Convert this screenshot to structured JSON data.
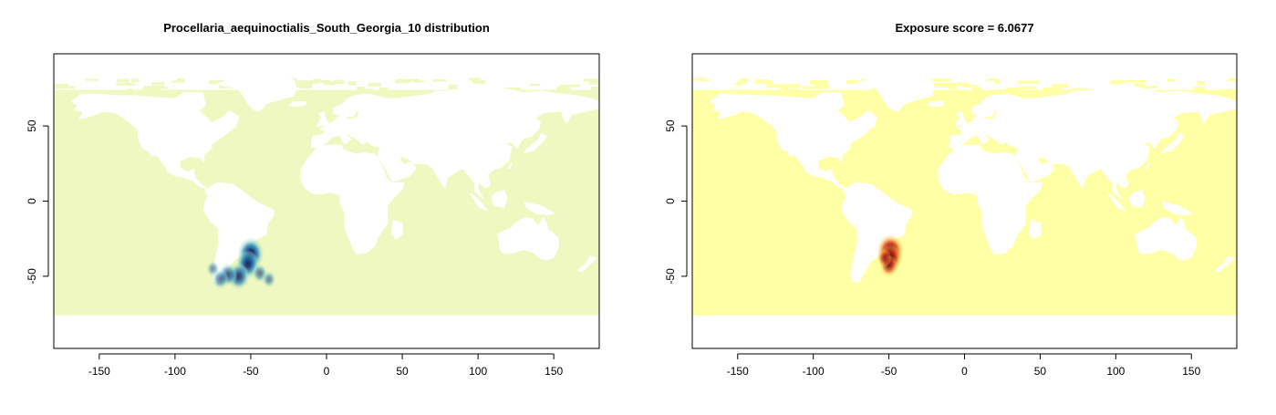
{
  "chart_data": [
    {
      "type": "heatmap",
      "title": "Procellaria_aequinoctialis_South_Georgia_10 distribution",
      "xlabel": "",
      "ylabel": "",
      "xlim": [
        -180,
        180
      ],
      "ylim": [
        -98,
        98
      ],
      "xticks": [
        -150,
        -100,
        -50,
        0,
        50,
        100,
        150
      ],
      "yticks": [
        -50,
        0,
        50
      ],
      "grid": false,
      "legend": "none",
      "colors": {
        "ocean": "#eff8c0",
        "land": "#ffffff",
        "low": "#9fd8c6",
        "mid": "#2b8cbe",
        "high": "#1b3a78",
        "peak": "#081d58"
      },
      "hotspots": [
        {
          "x": -50,
          "y": -35,
          "value": 1.0
        },
        {
          "x": -52,
          "y": -42,
          "value": 0.85
        },
        {
          "x": -58,
          "y": -50,
          "value": 0.75
        },
        {
          "x": -65,
          "y": -49,
          "value": 0.55
        },
        {
          "x": -70,
          "y": -52,
          "value": 0.4
        },
        {
          "x": -44,
          "y": -48,
          "value": 0.35
        },
        {
          "x": -38,
          "y": -52,
          "value": 0.25
        },
        {
          "x": -75,
          "y": -45,
          "value": 0.2
        }
      ]
    },
    {
      "type": "heatmap",
      "title": "Exposure score = 6.0677",
      "xlabel": "",
      "ylabel": "",
      "xlim": [
        -180,
        180
      ],
      "ylim": [
        -98,
        98
      ],
      "xticks": [
        -150,
        -100,
        -50,
        0,
        50,
        100,
        150
      ],
      "yticks": [
        -50,
        0,
        50
      ],
      "grid": false,
      "legend": "none",
      "colors": {
        "ocean": "#ffffa6",
        "land": "#ffffff",
        "low": "#f7c24a",
        "mid": "#e0471e",
        "high": "#8a0a12",
        "peak": "#1a0a10"
      },
      "hotspots": [
        {
          "x": -49,
          "y": -33,
          "value": 1.0
        },
        {
          "x": -49,
          "y": -38,
          "value": 0.8
        },
        {
          "x": -50,
          "y": -43,
          "value": 0.5
        },
        {
          "x": -53,
          "y": -38,
          "value": 0.3
        }
      ]
    }
  ]
}
